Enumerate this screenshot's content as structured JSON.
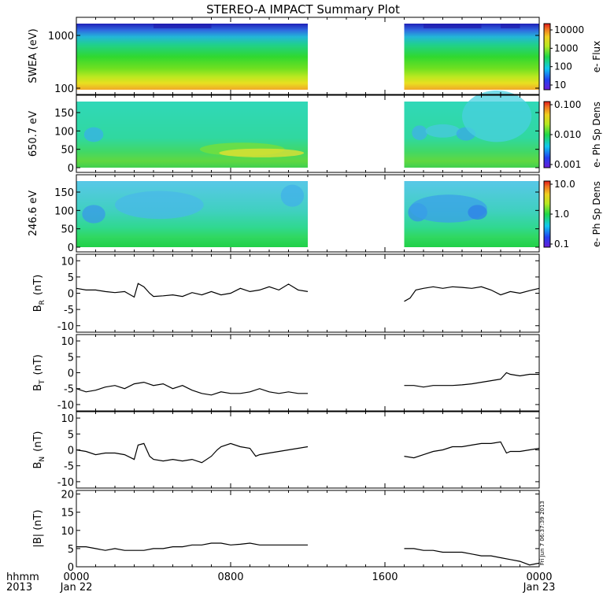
{
  "title": "STEREO-A IMPACT Summary Plot",
  "footer": {
    "row1_label": "hhmm",
    "row2_label": "2013",
    "tick_times": [
      "0000",
      "0800",
      "1600",
      "0000"
    ],
    "tick_dates": [
      "Jan 22",
      "",
      "",
      "Jan 23"
    ],
    "stamp": "Fri Jun  7 06:37:39 2013"
  },
  "chart_data": [
    {
      "type": "heatmap",
      "id": "swea",
      "ylabel": "SWEA (eV)",
      "yscale": "log",
      "ylim": [
        90,
        2000
      ],
      "yticks": [
        "1000",
        "100"
      ],
      "xlim_hours": [
        0,
        24
      ],
      "data_gap_hours": [
        12,
        17
      ],
      "colorbar": {
        "label": "e- Flux",
        "scale": "log",
        "ticks": [
          "10000",
          "1000",
          "100",
          "10"
        ]
      },
      "rows_top_to_bottom": [
        {
          "band": "~1800-2000 eV",
          "color": "#1f1fb8"
        },
        {
          "band": "~1500 eV",
          "color": "#2f6ae0"
        },
        {
          "band": "~1200 eV",
          "color": "#23b6d8"
        },
        {
          "band": "~900 eV",
          "color": "#20d08c"
        },
        {
          "band": "~600 eV",
          "color": "#30d830"
        },
        {
          "band": "~300 eV",
          "color": "#70e020"
        },
        {
          "band": "~200 eV",
          "color": "#b8e820"
        },
        {
          "band": "~130 eV",
          "color": "#e8e020"
        },
        {
          "band": "~100 eV",
          "color": "#f0a828"
        }
      ]
    },
    {
      "type": "heatmap",
      "id": "pad_650",
      "ylabel": "650.7 eV",
      "ylim": [
        0,
        180
      ],
      "yticks": [
        "150",
        "100",
        "50",
        "0"
      ],
      "xlim_hours": [
        0,
        24
      ],
      "data_gap_hours": [
        12,
        17
      ],
      "colorbar": {
        "label": "e- Ph Sp Dens",
        "scale": "log",
        "ticks": [
          "0.100",
          "0.010",
          "0.001"
        ]
      }
    },
    {
      "type": "heatmap",
      "id": "pad_246",
      "ylabel": "246.6 eV",
      "ylim": [
        0,
        180
      ],
      "yticks": [
        "150",
        "100",
        "50",
        "0"
      ],
      "xlim_hours": [
        0,
        24
      ],
      "data_gap_hours": [
        12,
        17
      ],
      "colorbar": {
        "label": "e- Ph Sp Dens",
        "scale": "log",
        "ticks": [
          "10.0",
          "1.0",
          "0.1"
        ]
      }
    },
    {
      "type": "line",
      "id": "br",
      "ylabel": "B",
      "ylabel_sub": "R",
      "ylabel_unit": "(nT)",
      "ylim": [
        -12,
        12
      ],
      "yticks": [
        10,
        5,
        0,
        -5,
        -10
      ],
      "xlim_hours": [
        0,
        24
      ],
      "segments": [
        {
          "x": [
            0,
            0.5,
            1,
            1.5,
            2,
            2.5,
            3,
            3.2,
            3.5,
            3.8,
            4,
            4.5,
            5,
            5.5,
            6,
            6.5,
            7,
            7.5,
            8,
            8.5,
            9,
            9.5,
            10,
            10.5,
            11,
            11.5,
            12
          ],
          "y": [
            1.5,
            1.0,
            1.0,
            0.5,
            0.2,
            0.5,
            -1.2,
            3.0,
            2.0,
            0.0,
            -1.0,
            -0.8,
            -0.5,
            -1.0,
            0.2,
            -0.5,
            0.5,
            -0.5,
            0.0,
            1.5,
            0.5,
            1.0,
            2.0,
            1.0,
            2.8,
            1.0,
            0.5
          ]
        },
        {
          "x": [
            17,
            17.3,
            17.6,
            18,
            18.5,
            19,
            19.5,
            20,
            20.5,
            21,
            21.5,
            22,
            22.5,
            23,
            23.5,
            24
          ],
          "y": [
            -2.5,
            -1.5,
            1.0,
            1.5,
            2.0,
            1.5,
            2.0,
            1.8,
            1.5,
            2.0,
            1.0,
            -0.5,
            0.5,
            0.0,
            0.8,
            1.5
          ]
        }
      ]
    },
    {
      "type": "line",
      "id": "bt",
      "ylabel": "B",
      "ylabel_sub": "T",
      "ylabel_unit": "(nT)",
      "ylim": [
        -12,
        12
      ],
      "yticks": [
        10,
        5,
        0,
        -5,
        -10
      ],
      "xlim_hours": [
        0,
        24
      ],
      "segments": [
        {
          "x": [
            0,
            0.5,
            1,
            1.5,
            2,
            2.5,
            3,
            3.5,
            4,
            4.5,
            5,
            5.5,
            6,
            6.5,
            7,
            7.5,
            8,
            8.5,
            9,
            9.5,
            10,
            10.5,
            11,
            11.5,
            12
          ],
          "y": [
            -5.0,
            -6.0,
            -5.5,
            -4.5,
            -4.0,
            -5.0,
            -3.5,
            -3.0,
            -4.0,
            -3.5,
            -5.0,
            -4.0,
            -5.5,
            -6.5,
            -7.0,
            -6.0,
            -6.5,
            -6.5,
            -6.0,
            -5.0,
            -6.0,
            -6.5,
            -6.0,
            -6.5,
            -6.5
          ]
        },
        {
          "x": [
            17,
            17.5,
            18,
            18.5,
            19,
            19.5,
            20,
            20.5,
            21,
            21.5,
            22,
            22.3,
            22.5,
            23,
            23.5,
            24
          ],
          "y": [
            -4.0,
            -4.0,
            -4.5,
            -4.0,
            -4.0,
            -4.0,
            -3.8,
            -3.5,
            -3.0,
            -2.5,
            -2.0,
            0.0,
            -0.5,
            -1.0,
            -0.5,
            -0.5
          ]
        }
      ]
    },
    {
      "type": "line",
      "id": "bn",
      "ylabel": "B",
      "ylabel_sub": "N",
      "ylabel_unit": "(nT)",
      "ylim": [
        -12,
        12
      ],
      "yticks": [
        10,
        5,
        0,
        -5,
        -10
      ],
      "xlim_hours": [
        0,
        24
      ],
      "segments": [
        {
          "x": [
            0,
            0.5,
            1,
            1.5,
            2,
            2.5,
            3,
            3.2,
            3.5,
            3.8,
            4,
            4.5,
            5,
            5.5,
            6,
            6.5,
            7,
            7.3,
            7.5,
            8,
            8.5,
            9,
            9.3,
            9.5,
            10,
            10.5,
            11,
            11.5,
            12
          ],
          "y": [
            0.0,
            -0.5,
            -1.5,
            -1.0,
            -1.0,
            -1.5,
            -3.0,
            1.5,
            2.0,
            -2.0,
            -3.0,
            -3.5,
            -3.0,
            -3.5,
            -3.0,
            -4.0,
            -2.0,
            0.0,
            1.0,
            2.0,
            1.0,
            0.5,
            -2.0,
            -1.5,
            -1.0,
            -0.5,
            0.0,
            0.5,
            1.0
          ]
        },
        {
          "x": [
            17,
            17.5,
            18,
            18.5,
            19,
            19.5,
            20,
            20.5,
            21,
            21.5,
            22,
            22.3,
            22.5,
            23,
            23.5,
            24
          ],
          "y": [
            -2.0,
            -2.5,
            -1.5,
            -0.5,
            0.0,
            1.0,
            1.0,
            1.5,
            2.0,
            2.0,
            2.5,
            -1.0,
            -0.5,
            -0.5,
            0.0,
            0.5
          ]
        }
      ]
    },
    {
      "type": "line",
      "id": "bmag",
      "ylabel": "|B| (nT)",
      "ylim": [
        0,
        21
      ],
      "yticks": [
        20,
        15,
        10,
        5,
        0
      ],
      "xlim_hours": [
        0,
        24
      ],
      "segments": [
        {
          "x": [
            0,
            0.5,
            1,
            1.5,
            2,
            2.5,
            3,
            3.5,
            4,
            4.5,
            5,
            5.5,
            6,
            6.5,
            7,
            7.5,
            8,
            8.5,
            9,
            9.5,
            10,
            10.5,
            11,
            11.5,
            12
          ],
          "y": [
            5.5,
            5.5,
            5.0,
            4.5,
            5.0,
            4.5,
            4.5,
            4.5,
            5.0,
            5.0,
            5.5,
            5.5,
            6.0,
            6.0,
            6.5,
            6.5,
            6.0,
            6.2,
            6.5,
            6.0,
            6.0,
            6.0,
            6.0,
            6.0,
            6.0
          ]
        },
        {
          "x": [
            17,
            17.5,
            18,
            18.5,
            19,
            19.5,
            20,
            20.5,
            21,
            21.5,
            22,
            22.5,
            23,
            23.5,
            24
          ],
          "y": [
            5.0,
            5.0,
            4.5,
            4.5,
            4.0,
            4.0,
            4.0,
            3.5,
            3.0,
            3.0,
            2.5,
            2.0,
            1.5,
            0.5,
            1.0
          ]
        }
      ]
    }
  ]
}
